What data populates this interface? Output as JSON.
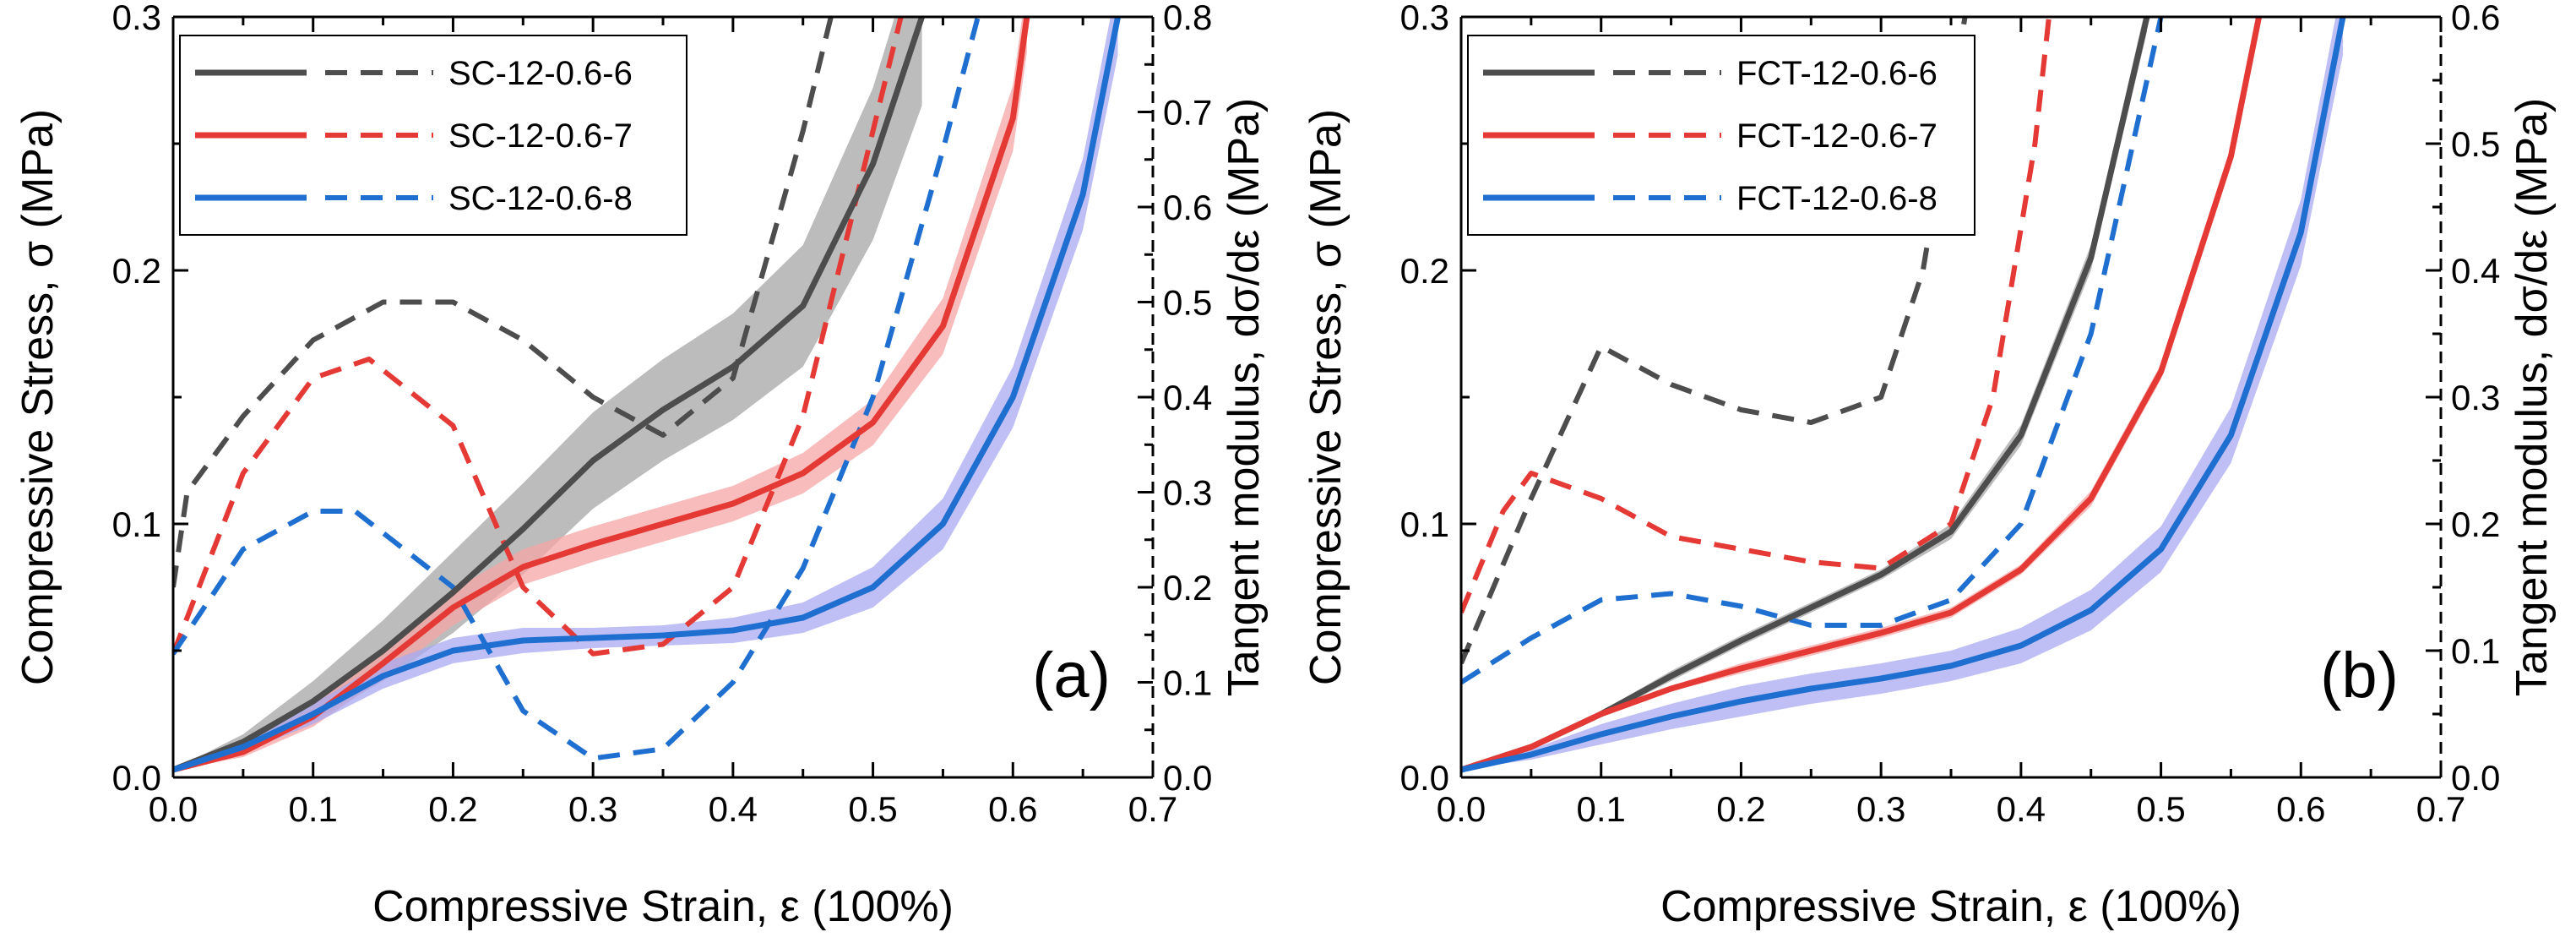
{
  "chart_data": [
    {
      "type": "line",
      "panel_label": "(a)",
      "xlabel": "Compressive Strain, ε (100%)",
      "ylabel": "Compressive Stress, σ (MPa)",
      "y2label": "Tangent modulus, dσ/dε (MPa)",
      "xlim": [
        0,
        0.7
      ],
      "ylim": [
        0,
        0.3
      ],
      "y2lim": [
        0,
        0.8
      ],
      "x_ticks": [
        "0.0",
        "0.1",
        "0.2",
        "0.3",
        "0.4",
        "0.5",
        "0.6",
        "0.7"
      ],
      "y_ticks": [
        "0.0",
        "0.1",
        "0.2",
        "0.3"
      ],
      "y2_ticks": [
        "0.0",
        "0.1",
        "0.2",
        "0.3",
        "0.4",
        "0.5",
        "0.6",
        "0.7",
        "0.8"
      ],
      "legend_position": "top-left",
      "grid": false,
      "series": [
        {
          "name": "SC-12-0.6-6",
          "color": "#4d4d4d",
          "band_color": "#a6a6a6",
          "stress": {
            "x": [
              0,
              0.05,
              0.1,
              0.15,
              0.2,
              0.25,
              0.3,
              0.35,
              0.4,
              0.45,
              0.5,
              0.535
            ],
            "y": [
              0.003,
              0.014,
              0.03,
              0.05,
              0.073,
              0.098,
              0.125,
              0.145,
              0.162,
              0.186,
              0.242,
              0.3
            ],
            "band": [
              0,
              0.003,
              0.008,
              0.012,
              0.016,
              0.018,
              0.019,
              0.02,
              0.021,
              0.024,
              0.03,
              0.035
            ]
          },
          "modulus": {
            "x": [
              0,
              0.01,
              0.05,
              0.1,
              0.15,
              0.2,
              0.25,
              0.3,
              0.35,
              0.4,
              0.45,
              0.47
            ],
            "y": [
              0.2,
              0.3,
              0.38,
              0.46,
              0.5,
              0.5,
              0.46,
              0.4,
              0.36,
              0.42,
              0.68,
              0.8
            ]
          }
        },
        {
          "name": "SC-12-0.6-7",
          "color": "#e53935",
          "band_color": "#f4a6a4",
          "stress": {
            "x": [
              0,
              0.05,
              0.1,
              0.15,
              0.2,
              0.25,
              0.3,
              0.35,
              0.4,
              0.45,
              0.5,
              0.55,
              0.6,
              0.61
            ],
            "y": [
              0.003,
              0.01,
              0.024,
              0.045,
              0.067,
              0.083,
              0.092,
              0.1,
              0.108,
              0.12,
              0.14,
              0.178,
              0.26,
              0.3
            ],
            "band": [
              0,
              0.002,
              0.004,
              0.006,
              0.007,
              0.007,
              0.007,
              0.007,
              0.007,
              0.008,
              0.009,
              0.011,
              0.013,
              0.014
            ]
          },
          "modulus": {
            "x": [
              0,
              0.05,
              0.1,
              0.14,
              0.2,
              0.25,
              0.3,
              0.35,
              0.4,
              0.45,
              0.5,
              0.52
            ],
            "y": [
              0.13,
              0.32,
              0.42,
              0.44,
              0.37,
              0.2,
              0.13,
              0.14,
              0.2,
              0.38,
              0.68,
              0.8
            ]
          }
        },
        {
          "name": "SC-12-0.6-8",
          "color": "#1f6fd1",
          "band_color": "#a9a9f2",
          "stress": {
            "x": [
              0,
              0.05,
              0.1,
              0.15,
              0.2,
              0.25,
              0.3,
              0.35,
              0.4,
              0.45,
              0.5,
              0.55,
              0.6,
              0.65,
              0.675
            ],
            "y": [
              0.003,
              0.012,
              0.025,
              0.04,
              0.05,
              0.054,
              0.055,
              0.056,
              0.058,
              0.063,
              0.075,
              0.1,
              0.15,
              0.23,
              0.3
            ],
            "band": [
              0,
              0.002,
              0.004,
              0.005,
              0.005,
              0.005,
              0.004,
              0.004,
              0.005,
              0.006,
              0.008,
              0.01,
              0.012,
              0.014,
              0.015
            ]
          },
          "modulus": {
            "x": [
              0,
              0.05,
              0.1,
              0.13,
              0.2,
              0.25,
              0.3,
              0.35,
              0.4,
              0.45,
              0.5,
              0.55,
              0.575
            ],
            "y": [
              0.13,
              0.24,
              0.28,
              0.28,
              0.2,
              0.07,
              0.02,
              0.03,
              0.1,
              0.22,
              0.4,
              0.66,
              0.8
            ]
          }
        }
      ]
    },
    {
      "type": "line",
      "panel_label": "(b)",
      "xlabel": "Compressive Strain, ε (100%)",
      "ylabel": "Compressive Stress, σ (MPa)",
      "y2label": "Tangent modulus, dσ/dε (MPa)",
      "xlim": [
        0,
        0.7
      ],
      "ylim": [
        0,
        0.3
      ],
      "y2lim": [
        0,
        0.6
      ],
      "x_ticks": [
        "0.0",
        "0.1",
        "0.2",
        "0.3",
        "0.4",
        "0.5",
        "0.6",
        "0.7"
      ],
      "y_ticks": [
        "0.0",
        "0.1",
        "0.2",
        "0.3"
      ],
      "y2_ticks": [
        "0.0",
        "0.1",
        "0.2",
        "0.3",
        "0.4",
        "0.5",
        "0.6"
      ],
      "legend_position": "top-left",
      "grid": false,
      "series": [
        {
          "name": "FCT-12-0.6-6",
          "color": "#4d4d4d",
          "band_color": "#a6a6a6",
          "stress": {
            "x": [
              0,
              0.05,
              0.1,
              0.15,
              0.2,
              0.25,
              0.3,
              0.35,
              0.4,
              0.45,
              0.49
            ],
            "y": [
              0.003,
              0.012,
              0.025,
              0.04,
              0.054,
              0.067,
              0.08,
              0.097,
              0.135,
              0.205,
              0.3
            ],
            "band": [
              0,
              0.001,
              0.001,
              0.002,
              0.002,
              0.002,
              0.002,
              0.003,
              0.004,
              0.005,
              0.006
            ]
          },
          "modulus": {
            "x": [
              0,
              0.05,
              0.1,
              0.15,
              0.2,
              0.25,
              0.3,
              0.33,
              0.36
            ],
            "y": [
              0.09,
              0.22,
              0.34,
              0.31,
              0.29,
              0.28,
              0.3,
              0.4,
              0.6
            ]
          }
        },
        {
          "name": "FCT-12-0.6-7",
          "color": "#e53935",
          "band_color": "#f4a6a4",
          "stress": {
            "x": [
              0,
              0.05,
              0.1,
              0.15,
              0.2,
              0.25,
              0.3,
              0.35,
              0.4,
              0.45,
              0.5,
              0.55,
              0.57
            ],
            "y": [
              0.003,
              0.012,
              0.025,
              0.035,
              0.043,
              0.05,
              0.057,
              0.065,
              0.082,
              0.11,
              0.16,
              0.245,
              0.3
            ],
            "band": [
              0,
              0.001,
              0.001,
              0.001,
              0.002,
              0.002,
              0.002,
              0.002,
              0.002,
              0.003,
              0.003,
              0.004,
              0.004
            ]
          },
          "modulus": {
            "x": [
              0,
              0.03,
              0.05,
              0.1,
              0.15,
              0.2,
              0.25,
              0.3,
              0.35,
              0.38,
              0.41,
              0.42
            ],
            "y": [
              0.13,
              0.21,
              0.24,
              0.22,
              0.19,
              0.18,
              0.17,
              0.165,
              0.2,
              0.3,
              0.5,
              0.6
            ]
          }
        },
        {
          "name": "FCT-12-0.6-8",
          "color": "#1f6fd1",
          "band_color": "#a9a9f2",
          "stress": {
            "x": [
              0,
              0.05,
              0.1,
              0.15,
              0.2,
              0.25,
              0.3,
              0.35,
              0.4,
              0.45,
              0.5,
              0.55,
              0.6,
              0.63
            ],
            "y": [
              0.003,
              0.009,
              0.017,
              0.024,
              0.03,
              0.035,
              0.039,
              0.044,
              0.052,
              0.066,
              0.09,
              0.135,
              0.215,
              0.3
            ],
            "band": [
              0,
              0.002,
              0.004,
              0.005,
              0.006,
              0.006,
              0.006,
              0.006,
              0.007,
              0.008,
              0.009,
              0.011,
              0.013,
              0.015
            ]
          },
          "modulus": {
            "x": [
              0,
              0.05,
              0.1,
              0.15,
              0.2,
              0.25,
              0.3,
              0.35,
              0.4,
              0.45,
              0.48,
              0.5
            ],
            "y": [
              0.075,
              0.11,
              0.14,
              0.145,
              0.135,
              0.12,
              0.12,
              0.14,
              0.2,
              0.35,
              0.5,
              0.6
            ]
          }
        }
      ]
    }
  ]
}
